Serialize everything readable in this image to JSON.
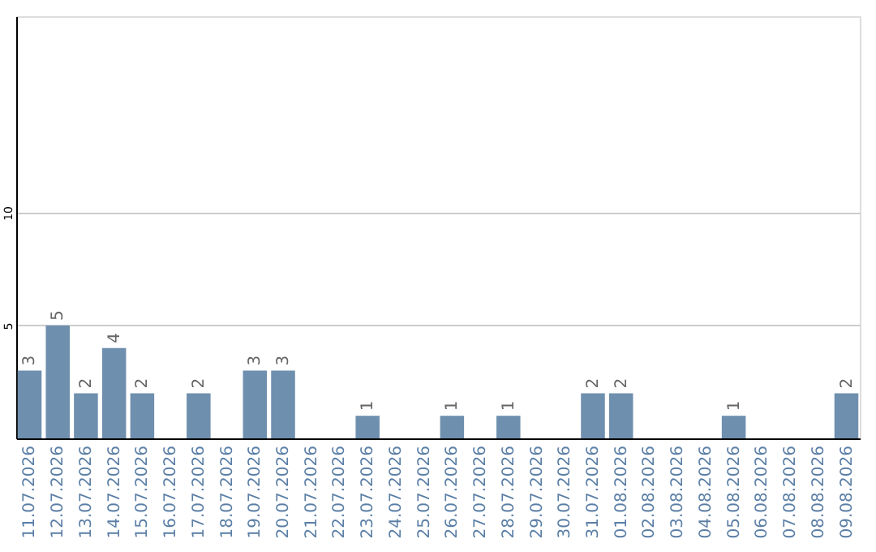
{
  "chart_data": {
    "type": "bar",
    "categories": [
      "11.07.2026",
      "12.07.2026",
      "13.07.2026",
      "14.07.2026",
      "15.07.2026",
      "16.07.2026",
      "17.07.2026",
      "18.07.2026",
      "19.07.2026",
      "20.07.2026",
      "21.07.2026",
      "22.07.2026",
      "23.07.2026",
      "24.07.2026",
      "25.07.2026",
      "26.07.2026",
      "27.07.2026",
      "28.07.2026",
      "29.07.2026",
      "30.07.2026",
      "31.07.2026",
      "01.08.2026",
      "02.08.2026",
      "03.08.2026",
      "04.08.2026",
      "05.08.2026",
      "06.08.2026",
      "07.08.2026",
      "08.08.2026",
      "09.08.2026"
    ],
    "values": [
      3,
      5,
      2,
      4,
      2,
      0,
      2,
      0,
      3,
      3,
      0,
      0,
      1,
      0,
      0,
      1,
      0,
      1,
      0,
      0,
      2,
      2,
      0,
      0,
      0,
      1,
      0,
      0,
      0,
      2
    ],
    "value_labels": [
      "3",
      "5",
      "2",
      "4",
      "2",
      null,
      "2",
      null,
      "3",
      "3",
      null,
      null,
      "1",
      null,
      null,
      "1",
      null,
      "1",
      null,
      null,
      "2",
      "2",
      null,
      null,
      null,
      "1",
      null,
      null,
      null,
      "2"
    ],
    "color": "#6f8fae",
    "ylim": [
      0,
      18.7
    ],
    "yticks": [
      5,
      10
    ],
    "grid": "y"
  }
}
